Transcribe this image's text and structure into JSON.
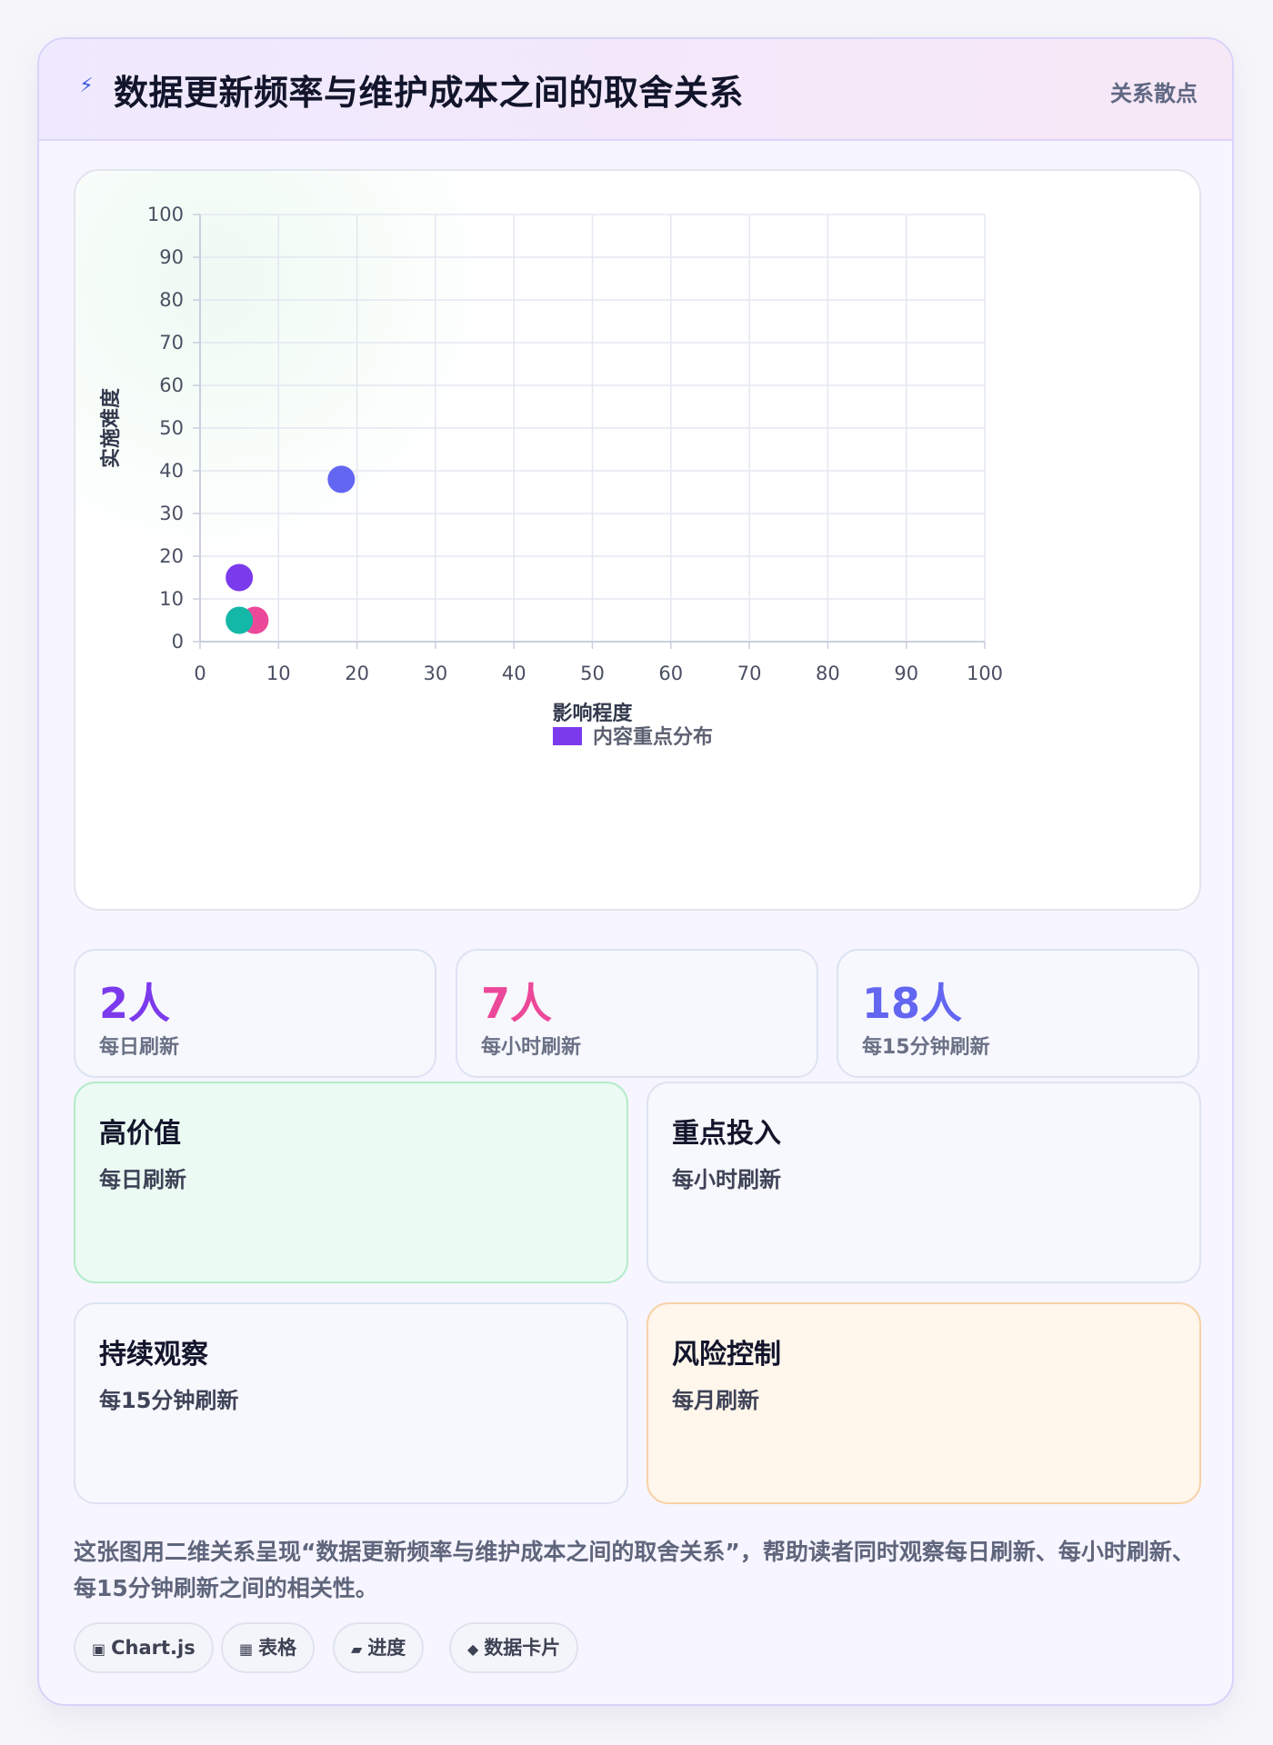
{
  "header": {
    "icon": "lightning-icon",
    "title": "数据更新频率与维护成本之间的取舍关系",
    "tag": "关系散点"
  },
  "chart_data": {
    "type": "scatter",
    "xlabel": "影响程度",
    "ylabel": "实施难度",
    "xlim": [
      0,
      100
    ],
    "ylim": [
      0,
      100
    ],
    "x_ticks": [
      "0",
      "10",
      "20",
      "30",
      "40",
      "50",
      "60",
      "70",
      "80",
      "90",
      "100"
    ],
    "y_ticks": [
      "0",
      "10",
      "20",
      "30",
      "40",
      "50",
      "60",
      "70",
      "80",
      "90",
      "100"
    ],
    "grid": true,
    "legend_position": "bottom",
    "series": [
      {
        "name": "内容重点分布",
        "color": "#7c3aed",
        "points": [
          {
            "x": 5,
            "y": 15,
            "color": "#7c3aed"
          },
          {
            "x": 7,
            "y": 5,
            "color": "#ec4899"
          },
          {
            "x": 18,
            "y": 38,
            "color": "#6366f1"
          },
          {
            "x": 5,
            "y": 5,
            "color": "#14b8a6"
          }
        ]
      }
    ]
  },
  "stats": [
    {
      "value": "2人",
      "label": "每日刷新",
      "color": "#7c3aed"
    },
    {
      "value": "7人",
      "label": "每小时刷新",
      "color": "#ec4899"
    },
    {
      "value": "18人",
      "label": "每15分钟刷新",
      "color": "#6366f1"
    }
  ],
  "quadrants": [
    {
      "title": "高价值",
      "subtitle": "每日刷新"
    },
    {
      "title": "重点投入",
      "subtitle": "每小时刷新"
    },
    {
      "title": "持续观察",
      "subtitle": "每15分钟刷新"
    },
    {
      "title": "风险控制",
      "subtitle": "每月刷新"
    }
  ],
  "description": "这张图用二维关系呈现“数据更新频率与维护成本之间的取舍关系”，帮助读者同时观察每日刷新、每小时刷新、每15分钟刷新之间的相关性。",
  "chips": [
    {
      "icon": "▣",
      "label": "Chart.js"
    },
    {
      "icon": "▦",
      "label": "表格"
    },
    {
      "icon": "▰",
      "label": "进度"
    },
    {
      "icon": "◆",
      "label": "数据卡片"
    }
  ],
  "colors": {
    "accent": "#7c3aed",
    "pink": "#ec4899",
    "indigo": "#6366f1",
    "teal": "#14b8a6",
    "quad_green_bg": "#ebfbf3",
    "quad_orange_bg": "#fff6ec"
  }
}
